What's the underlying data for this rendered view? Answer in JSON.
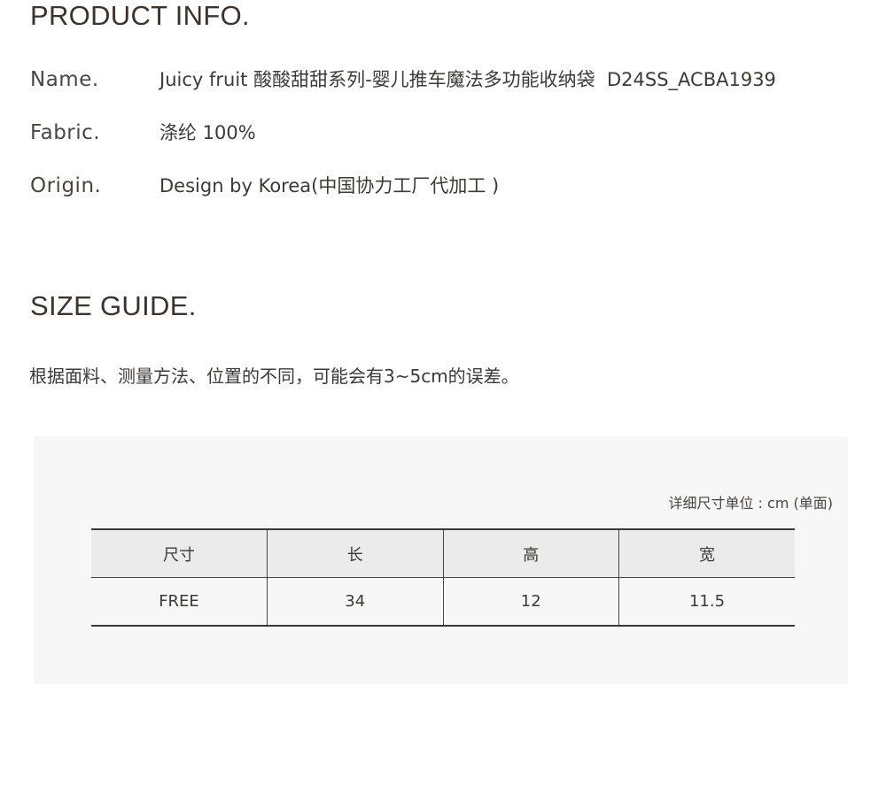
{
  "product_info": {
    "heading": "PRODUCT INFO.",
    "rows": [
      {
        "label": "Name.",
        "value": "Juicy fruit 酸酸甜甜系列-婴儿推车魔法多功能收纳袋  D24SS_ACBA1939"
      },
      {
        "label": "Fabric.",
        "value": "涤纶 100%"
      },
      {
        "label": "Origin.",
        "value": "Design by Korea(中国协力工厂代加工 )"
      }
    ]
  },
  "size_guide": {
    "heading": "SIZE GUIDE.",
    "note": "根据面料、测量方法、位置的不同，可能会有3~5cm的误差。",
    "unit": "详细尺寸单位 : cm (单面)",
    "columns": [
      "尺寸",
      "长",
      "高",
      "宽"
    ],
    "rows": [
      [
        "FREE",
        "34",
        "12",
        "11.5"
      ]
    ]
  }
}
